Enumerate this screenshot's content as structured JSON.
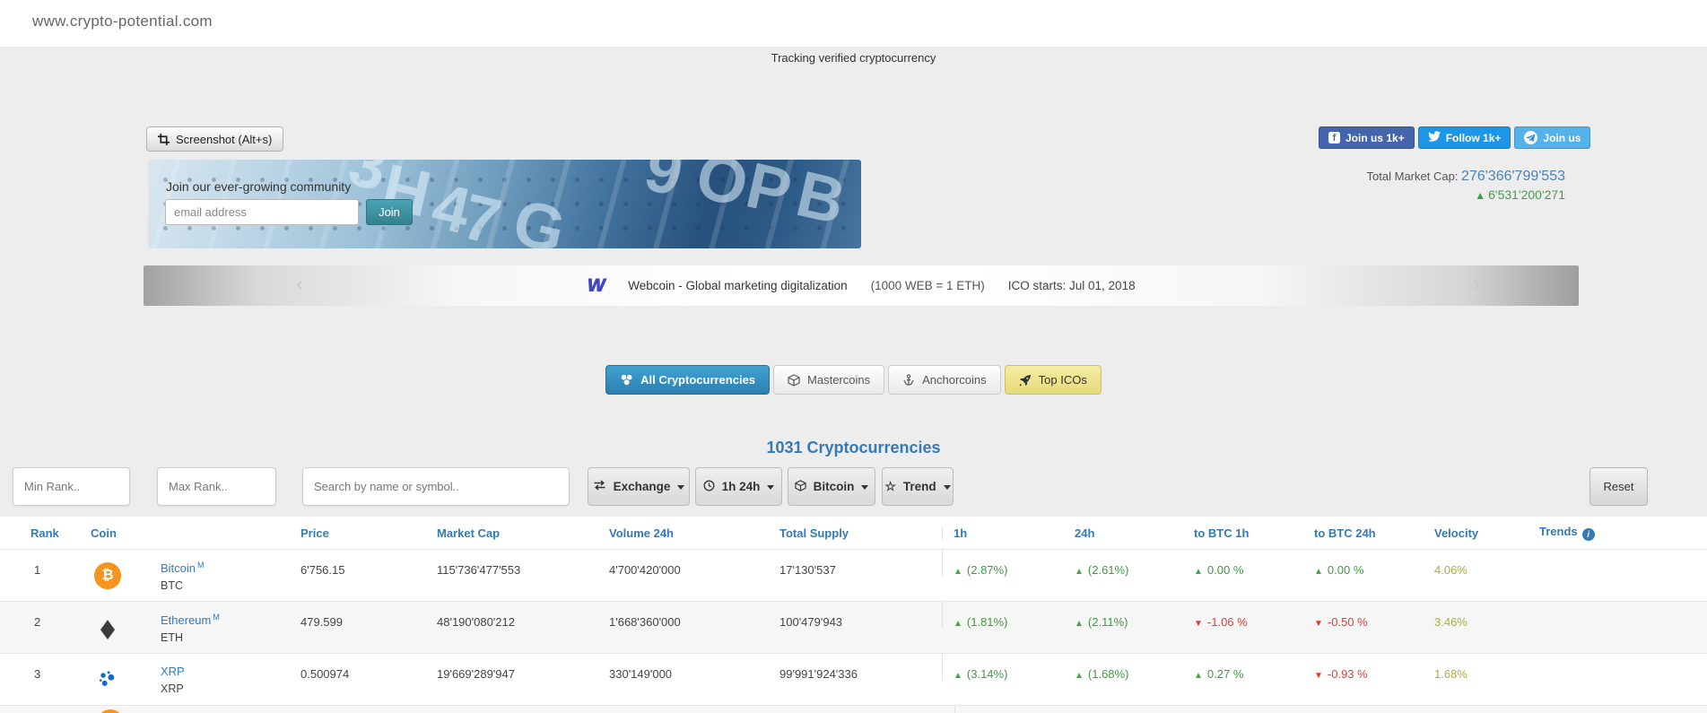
{
  "header": {
    "site_title": "www.crypto-potential.com",
    "tagline": "Tracking verified cryptocurrency"
  },
  "toolbar": {
    "screenshot_label": "Screenshot (Alt+s)"
  },
  "newsletter": {
    "title": "Join our ever-growing community",
    "email_placeholder": "email address",
    "join_label": "Join",
    "glyphs": [
      "3",
      "H",
      "4",
      "7",
      "G",
      "9",
      "O",
      "P",
      "B"
    ]
  },
  "social": {
    "facebook_label": "Join us 1k+",
    "twitter_label": "Follow 1k+",
    "telegram_label": "Join us"
  },
  "market_cap": {
    "label": "Total Market Cap:",
    "value": "276'366'799'553",
    "change": "6'531'200'271"
  },
  "ticker": {
    "text": "Webcoin - Global marketing digitalization",
    "rate": "(1000 WEB = 1 ETH)",
    "ico": "ICO starts: Jul 01, 2018",
    "prev": "‹",
    "next": "›",
    "logo_letter": "W"
  },
  "tabs": [
    {
      "label": "All Cryptocurrencies",
      "state": "active"
    },
    {
      "label": "Mastercoins",
      "state": "default"
    },
    {
      "label": "Anchorcoins",
      "state": "default"
    },
    {
      "label": "Top ICOs",
      "state": "highlight"
    }
  ],
  "count_title": "1031 Cryptocurrencies",
  "filters": {
    "min_rank_placeholder": "Min Rank..",
    "max_rank_placeholder": "Max Rank..",
    "search_placeholder": "Search by name or symbol..",
    "exchange_label": "Exchange",
    "period_label": "1h 24h",
    "currency_label": "Bitcoin",
    "trend_label": "Trend",
    "reset_label": "Reset"
  },
  "table": {
    "headers": [
      "Rank",
      "Coin",
      "Price",
      "Market Cap",
      "Volume 24h",
      "Total Supply",
      "1h",
      "24h",
      "to BTC 1h",
      "to BTC 24h",
      "Velocity",
      "Trends"
    ],
    "rows": [
      {
        "rank": "1",
        "icon": "bitcoin",
        "name": "Bitcoin",
        "badge": "M",
        "symbol": "BTC",
        "price": "6'756.15",
        "market_cap": "115'736'477'553",
        "volume_24h": "4'700'420'000",
        "total_supply": "17'130'537",
        "change_1h": "(2.87%)",
        "change_1h_dir": "up",
        "change_24h": "(2.61%)",
        "change_24h_dir": "up",
        "to_btc_1h": "0.00 %",
        "to_btc_1h_dir": "up",
        "to_btc_24h": "0.00 %",
        "to_btc_24h_dir": "up",
        "velocity": "4.06%"
      },
      {
        "rank": "2",
        "icon": "ethereum",
        "name": "Ethereum",
        "badge": "M",
        "symbol": "ETH",
        "price": "479.599",
        "market_cap": "48'190'080'212",
        "volume_24h": "1'668'360'000",
        "total_supply": "100'479'943",
        "change_1h": "(1.81%)",
        "change_1h_dir": "up",
        "change_24h": "(2.11%)",
        "change_24h_dir": "up",
        "to_btc_1h": "-1.06 %",
        "to_btc_1h_dir": "down",
        "to_btc_24h": "-0.50 %",
        "to_btc_24h_dir": "down",
        "velocity": "3.46%"
      },
      {
        "rank": "3",
        "icon": "xrp",
        "name": "XRP",
        "badge": "",
        "symbol": "XRP",
        "price": "0.500974",
        "market_cap": "19'669'289'947",
        "volume_24h": "330'149'000",
        "total_supply": "99'991'924'336",
        "change_1h": "(3.14%)",
        "change_1h_dir": "up",
        "change_24h": "(1.68%)",
        "change_24h_dir": "up",
        "to_btc_1h": "0.27 %",
        "to_btc_1h_dir": "up",
        "to_btc_24h": "-0.93 %",
        "to_btc_24h_dir": "down",
        "velocity": "1.68%"
      }
    ]
  },
  "colors": {
    "link_blue": "#337ab7",
    "green": "#3e9b3f",
    "red": "#dd4136",
    "velocity_olive": "#b0ab40",
    "facebook": "#4464ab",
    "twitter": "#1e96e8",
    "telegram": "#55b1ea",
    "bitcoin_orange": "#f7941d",
    "active_tab_blue": "#2b7fb0",
    "topico_yellow": "#e7da7d"
  }
}
